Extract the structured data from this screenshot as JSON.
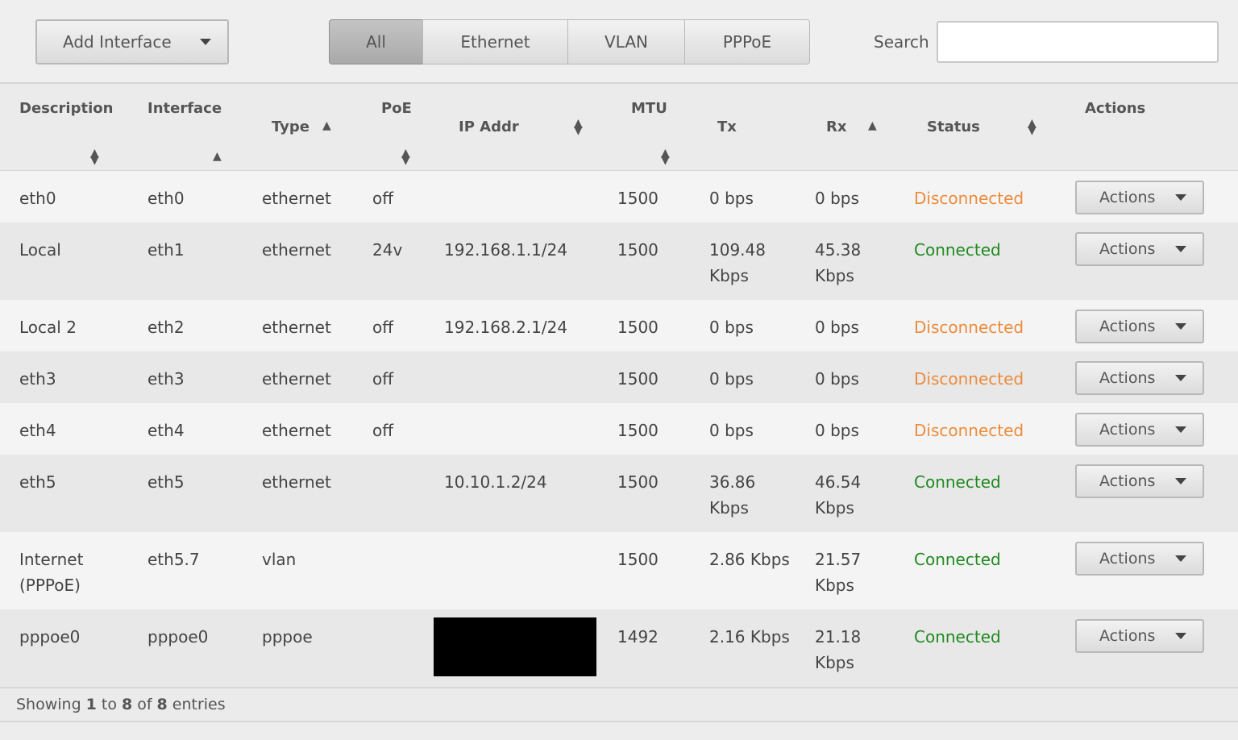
{
  "toolbar": {
    "add_button": "Add Interface",
    "filters": [
      "All",
      "Ethernet",
      "VLAN",
      "PPPoE"
    ],
    "search_label": "Search"
  },
  "table": {
    "columns": [
      "Description",
      "Interface",
      "Type",
      "PoE",
      "IP Addr",
      "MTU",
      "Tx",
      "Rx",
      "Status",
      "Actions"
    ],
    "status_colors": {
      "Connected": "#1f8a1f",
      "Disconnected": "#ec8b3c"
    },
    "rows": [
      [
        "eth0",
        "eth0",
        "ethernet",
        "off",
        null,
        "1500",
        "0 bps",
        "0 bps",
        "Disconnected",
        "Actions"
      ],
      [
        "Local",
        "eth1",
        "ethernet",
        "24v",
        "192.168.1.1/24",
        "1500",
        "109.48 Kbps",
        "45.38 Kbps",
        "Connected",
        "Actions"
      ],
      [
        "Local 2",
        "eth2",
        "ethernet",
        "off",
        "192.168.2.1/24",
        "1500",
        "0 bps",
        "0 bps",
        "Disconnected",
        "Actions"
      ],
      [
        "eth3",
        "eth3",
        "ethernet",
        "off",
        null,
        "1500",
        "0 bps",
        "0 bps",
        "Disconnected",
        "Actions"
      ],
      [
        "eth4",
        "eth4",
        "ethernet",
        "off",
        null,
        "1500",
        "0 bps",
        "0 bps",
        "Disconnected",
        "Actions"
      ],
      [
        "eth5",
        "eth5",
        "ethernet",
        null,
        "10.10.1.2/24",
        "1500",
        "36.86 Kbps",
        "46.54 Kbps",
        "Connected",
        "Actions"
      ],
      [
        "Internet (PPPoE)",
        "eth5.7",
        "vlan",
        null,
        null,
        "1500",
        "2.86 Kbps",
        "21.57 Kbps",
        "Connected",
        "Actions"
      ],
      [
        "pppoe0",
        "pppoe0",
        "pppoe",
        null,
        null,
        "1492",
        "2.16 Kbps",
        "21.18 Kbps",
        "Connected",
        "Actions"
      ]
    ]
  },
  "footer": [
    "Showing",
    "1",
    "to",
    "8",
    "of",
    "8",
    "entries"
  ]
}
